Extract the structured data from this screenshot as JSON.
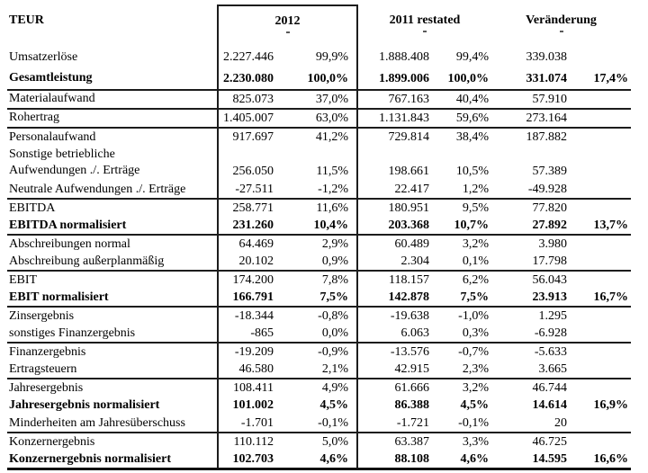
{
  "header": {
    "col_label": "TEUR",
    "col_2012": "2012",
    "col_2011": "2011 restated",
    "col_change": "Veränderung"
  },
  "table": {
    "rows": [
      {
        "label": "Umsatzerlöse",
        "bold": false,
        "divider": false,
        "cells": [
          "2.227.446",
          "99,9%",
          "1.888.408",
          "99,4%",
          "339.038",
          ""
        ]
      },
      {
        "label": "Gesamtleistung",
        "bold": true,
        "divider": true,
        "cells": [
          "2.230.080",
          "100,0%",
          "1.899.006",
          "100,0%",
          "331.074",
          "17,4%"
        ]
      },
      {
        "label": "Materialaufwand",
        "bold": false,
        "divider": true,
        "cells": [
          "825.073",
          "37,0%",
          "767.163",
          "40,4%",
          "57.910",
          ""
        ]
      },
      {
        "label": "Rohertrag",
        "bold": false,
        "divider": true,
        "cells": [
          "1.405.007",
          "63,0%",
          "1.131.843",
          "59,6%",
          "273.164",
          ""
        ]
      },
      {
        "label": "Personalaufwand",
        "bold": false,
        "divider": false,
        "cells": [
          "917.697",
          "41,2%",
          "729.814",
          "38,4%",
          "187.882",
          ""
        ]
      },
      {
        "label": "Sonstige betriebliche\nAufwendungen ./. Erträge",
        "bold": false,
        "divider": false,
        "cells": [
          "256.050",
          "11,5%",
          "198.661",
          "10,5%",
          "57.389",
          ""
        ]
      },
      {
        "label": "Neutrale Aufwendungen ./. Erträge",
        "bold": false,
        "divider": true,
        "cells": [
          "-27.511",
          "-1,2%",
          "22.417",
          "1,2%",
          "-49.928",
          ""
        ]
      },
      {
        "label": "EBITDA",
        "bold": false,
        "divider": false,
        "cells": [
          "258.771",
          "11,6%",
          "180.951",
          "9,5%",
          "77.820",
          ""
        ]
      },
      {
        "label": "EBITDA normalisiert",
        "bold": true,
        "divider": true,
        "cells": [
          "231.260",
          "10,4%",
          "203.368",
          "10,7%",
          "27.892",
          "13,7%"
        ]
      },
      {
        "label": "Abschreibungen normal",
        "bold": false,
        "divider": false,
        "cells": [
          "64.469",
          "2,9%",
          "60.489",
          "3,2%",
          "3.980",
          ""
        ]
      },
      {
        "label": "Abschreibung außerplanmäßig",
        "bold": false,
        "divider": true,
        "cells": [
          "20.102",
          "0,9%",
          "2.304",
          "0,1%",
          "17.798",
          ""
        ]
      },
      {
        "label": "EBIT",
        "bold": false,
        "divider": false,
        "cells": [
          "174.200",
          "7,8%",
          "118.157",
          "6,2%",
          "56.043",
          ""
        ]
      },
      {
        "label": "EBIT normalisiert",
        "bold": true,
        "divider": true,
        "cells": [
          "166.791",
          "7,5%",
          "142.878",
          "7,5%",
          "23.913",
          "16,7%"
        ]
      },
      {
        "label": "Zinsergebnis",
        "bold": false,
        "divider": false,
        "cells": [
          "-18.344",
          "-0,8%",
          "-19.638",
          "-1,0%",
          "1.295",
          ""
        ]
      },
      {
        "label": "sonstiges Finanzergebnis",
        "bold": false,
        "divider": true,
        "cells": [
          "-865",
          "0,0%",
          "6.063",
          "0,3%",
          "-6.928",
          ""
        ]
      },
      {
        "label": "Finanzergebnis",
        "bold": false,
        "divider": false,
        "cells": [
          "-19.209",
          "-0,9%",
          "-13.576",
          "-0,7%",
          "-5.633",
          ""
        ]
      },
      {
        "label": "Ertragsteuern",
        "bold": false,
        "divider": true,
        "cells": [
          "46.580",
          "2,1%",
          "42.915",
          "2,3%",
          "3.665",
          ""
        ]
      },
      {
        "label": "Jahresergebnis",
        "bold": false,
        "divider": false,
        "cells": [
          "108.411",
          "4,9%",
          "61.666",
          "3,2%",
          "46.744",
          ""
        ]
      },
      {
        "label": "Jahresergebnis normalisiert",
        "bold": true,
        "divider": false,
        "cells": [
          "101.002",
          "4,5%",
          "86.388",
          "4,5%",
          "14.614",
          "16,9%"
        ]
      },
      {
        "label": "Minderheiten am Jahresüberschuss",
        "bold": false,
        "divider": true,
        "cells": [
          "-1.701",
          "-0,1%",
          "-1.721",
          "-0,1%",
          "20",
          ""
        ]
      },
      {
        "label": "Konzernergebnis",
        "bold": false,
        "divider": false,
        "cells": [
          "110.112",
          "5,0%",
          "63.387",
          "3,3%",
          "46.725",
          ""
        ]
      },
      {
        "label": "Konzernergebnis normalisiert",
        "bold": true,
        "divider": false,
        "cells": [
          "102.703",
          "4,6%",
          "88.108",
          "4,6%",
          "14.595",
          "16,6%"
        ]
      }
    ]
  }
}
